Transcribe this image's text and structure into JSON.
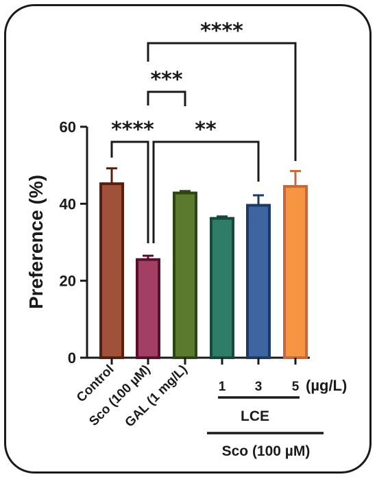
{
  "chart_data": {
    "type": "bar",
    "ylabel": "Preference (%)",
    "ylim": [
      0,
      60
    ],
    "yticks": [
      "0",
      "20",
      "40",
      "60"
    ],
    "unit_label": "(µg/L)",
    "categories": [
      "Control",
      "Sco (100 µM)",
      "GAL (1 mg/L)",
      "1",
      "3",
      "5"
    ],
    "values": [
      45.2,
      25.5,
      42.8,
      36.2,
      39.6,
      44.5
    ],
    "errors": [
      4.0,
      1.0,
      0.5,
      0.5,
      2.6,
      4.0
    ],
    "colors": [
      "#A0513A",
      "#A23F63",
      "#5C7A2E",
      "#2F7D68",
      "#3E65A0",
      "#F59542"
    ],
    "edge_colors": [
      "#5A1E0F",
      "#5A0F2E",
      "#2D4512",
      "#134A3B",
      "#1B3A66",
      "#C4693E"
    ],
    "group_labels": [
      {
        "text": "LCE",
        "from": 3,
        "to": 5
      },
      {
        "text": "Sco (100 µM)",
        "from": 3,
        "to": 6
      }
    ],
    "significance": [
      {
        "from": 0,
        "to": 1,
        "label": "****"
      },
      {
        "from": 1,
        "to": 2,
        "label": "***"
      },
      {
        "from": 1,
        "to": 4,
        "label": "**"
      },
      {
        "from": 1,
        "to": 5,
        "label": "****"
      }
    ]
  }
}
